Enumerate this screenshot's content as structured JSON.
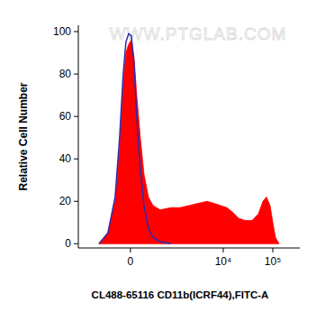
{
  "chart_data": {
    "type": "area",
    "x_label": "CL488-65116 CD11b(ICRF44),FITC-A",
    "y_label": "Relative Cell Number",
    "annotations": [
      "WWW.PTGLAB.COM"
    ],
    "log": "x",
    "xlim": [
      -1500,
      350000
    ],
    "xticks": [
      0,
      {
        "value": 10000,
        "label": "10⁴"
      },
      {
        "value": 100000,
        "label": "10⁵"
      }
    ],
    "ylim": [
      -2,
      103
    ],
    "yticks": [
      0,
      20,
      40,
      60,
      80,
      100
    ],
    "grid": false,
    "series": [
      {
        "type": "area",
        "color": "#ff0000",
        "x": [
          -549,
          -337,
          -208,
          -141,
          -92,
          -57,
          -23,
          11,
          45,
          80,
          128,
          180,
          252,
          336,
          501,
          864,
          1329,
          2034,
          3096,
          4708,
          6590,
          8823,
          11836,
          15199,
          20390,
          27330,
          38198,
          51110,
          63080,
          74510,
          88150,
          99960,
          113250,
          133960
        ],
        "values": [
          0,
          5,
          20,
          45,
          75,
          90,
          94,
          96,
          88,
          70,
          50,
          33,
          22,
          18,
          16,
          17,
          17,
          18,
          19,
          20,
          19,
          18,
          17,
          15,
          12,
          11,
          11,
          14,
          20,
          22,
          18,
          10,
          3,
          0
        ]
      },
      {
        "type": "line",
        "color": "#2b2bb0",
        "x": [
          -549,
          -337,
          -208,
          -141,
          -92,
          -57,
          -23,
          11,
          45,
          80,
          128,
          180,
          252,
          336,
          501,
          864
        ],
        "values": [
          0,
          5,
          22,
          50,
          80,
          95,
          99,
          98,
          85,
          60,
          35,
          18,
          7,
          3,
          1,
          0
        ]
      }
    ]
  }
}
